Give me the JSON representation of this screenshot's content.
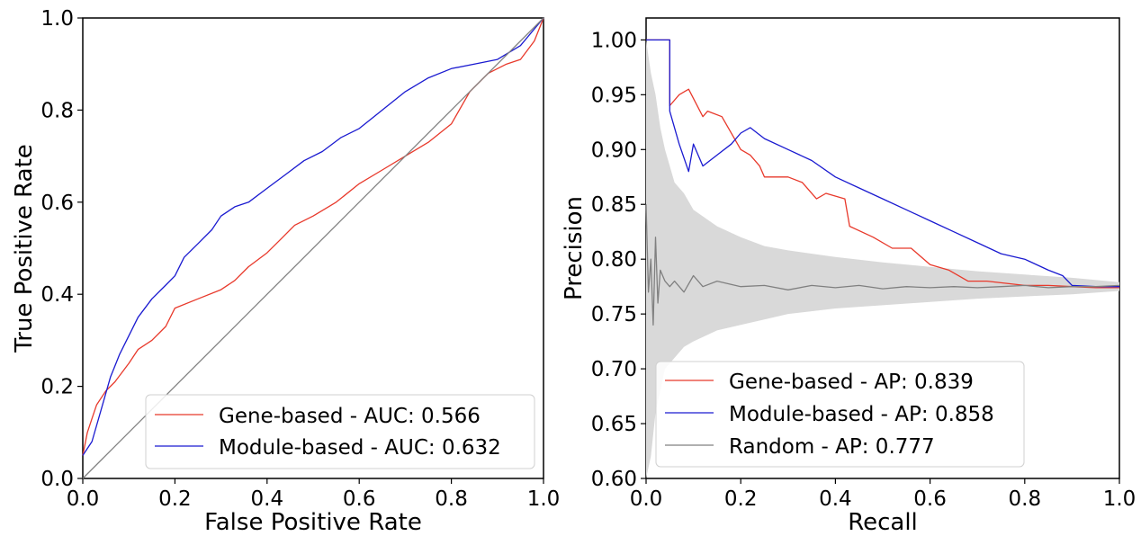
{
  "colors": {
    "gene": "#e8392b",
    "module": "#1a1ad0",
    "random": "#808080",
    "random_band": "#d9d9d9",
    "diagonal": "#808080"
  },
  "chart_data": [
    {
      "type": "line",
      "xlabel": "False Positive Rate",
      "ylabel": "True Positive Rate",
      "xlim": [
        0.0,
        1.0
      ],
      "ylim": [
        0.0,
        1.0
      ],
      "xticks": [
        "0.0",
        "0.2",
        "0.4",
        "0.6",
        "0.8",
        "1.0"
      ],
      "yticks": [
        "0.0",
        "0.2",
        "0.4",
        "0.6",
        "0.8",
        "1.0"
      ],
      "legend_position": "bottom-right",
      "series": [
        {
          "name": "Gene-based - AUC: 0.566",
          "color_key": "gene",
          "x": [
            0.0,
            0.01,
            0.02,
            0.03,
            0.05,
            0.07,
            0.1,
            0.12,
            0.15,
            0.18,
            0.2,
            0.25,
            0.3,
            0.33,
            0.36,
            0.4,
            0.43,
            0.46,
            0.5,
            0.55,
            0.6,
            0.65,
            0.7,
            0.75,
            0.8,
            0.84,
            0.88,
            0.92,
            0.95,
            0.98,
            1.0
          ],
          "y": [
            0.05,
            0.1,
            0.13,
            0.16,
            0.19,
            0.21,
            0.25,
            0.28,
            0.3,
            0.33,
            0.37,
            0.39,
            0.41,
            0.43,
            0.46,
            0.49,
            0.52,
            0.55,
            0.57,
            0.6,
            0.64,
            0.67,
            0.7,
            0.73,
            0.77,
            0.84,
            0.88,
            0.9,
            0.91,
            0.95,
            1.0
          ]
        },
        {
          "name": "Module-based - AUC: 0.632",
          "color_key": "module",
          "x": [
            0.0,
            0.02,
            0.04,
            0.06,
            0.08,
            0.1,
            0.12,
            0.15,
            0.18,
            0.2,
            0.22,
            0.25,
            0.28,
            0.3,
            0.33,
            0.36,
            0.4,
            0.44,
            0.48,
            0.52,
            0.56,
            0.6,
            0.65,
            0.7,
            0.75,
            0.8,
            0.85,
            0.9,
            0.95,
            1.0
          ],
          "y": [
            0.05,
            0.08,
            0.15,
            0.22,
            0.27,
            0.31,
            0.35,
            0.39,
            0.42,
            0.44,
            0.48,
            0.51,
            0.54,
            0.57,
            0.59,
            0.6,
            0.63,
            0.66,
            0.69,
            0.71,
            0.74,
            0.76,
            0.8,
            0.84,
            0.87,
            0.89,
            0.9,
            0.91,
            0.94,
            1.0
          ]
        },
        {
          "name": "",
          "color_key": "diagonal",
          "x": [
            0.0,
            1.0
          ],
          "y": [
            0.0,
            1.0
          ]
        }
      ]
    },
    {
      "type": "line",
      "xlabel": "Recall",
      "ylabel": "Precision",
      "xlim": [
        0.0,
        1.0
      ],
      "ylim": [
        0.6,
        1.02
      ],
      "xticks": [
        "0.0",
        "0.2",
        "0.4",
        "0.6",
        "0.8",
        "1.0"
      ],
      "yticks": [
        "0.60",
        "0.65",
        "0.70",
        "0.75",
        "0.80",
        "0.85",
        "0.90",
        "0.95",
        "1.00"
      ],
      "legend_position": "bottom-left",
      "series": [
        {
          "name": "Gene-based - AP: 0.839",
          "color_key": "gene",
          "x": [
            0.0,
            0.05,
            0.05,
            0.07,
            0.09,
            0.12,
            0.13,
            0.16,
            0.2,
            0.22,
            0.24,
            0.25,
            0.3,
            0.33,
            0.36,
            0.38,
            0.42,
            0.43,
            0.48,
            0.52,
            0.56,
            0.6,
            0.64,
            0.68,
            0.72,
            0.76,
            0.8,
            0.85,
            0.9,
            0.95,
            1.0
          ],
          "y": [
            1.0,
            1.0,
            0.94,
            0.95,
            0.955,
            0.93,
            0.935,
            0.93,
            0.9,
            0.895,
            0.885,
            0.875,
            0.875,
            0.87,
            0.855,
            0.86,
            0.855,
            0.83,
            0.82,
            0.81,
            0.81,
            0.795,
            0.79,
            0.78,
            0.78,
            0.778,
            0.776,
            0.776,
            0.775,
            0.774,
            0.774
          ]
        },
        {
          "name": "Module-based - AP: 0.858",
          "color_key": "module",
          "x": [
            0.0,
            0.05,
            0.05,
            0.07,
            0.09,
            0.1,
            0.12,
            0.15,
            0.18,
            0.2,
            0.22,
            0.25,
            0.3,
            0.35,
            0.4,
            0.45,
            0.5,
            0.55,
            0.6,
            0.65,
            0.7,
            0.75,
            0.8,
            0.85,
            0.88,
            0.9,
            0.95,
            1.0
          ],
          "y": [
            1.0,
            1.0,
            0.935,
            0.905,
            0.88,
            0.905,
            0.885,
            0.895,
            0.905,
            0.915,
            0.92,
            0.91,
            0.9,
            0.89,
            0.875,
            0.865,
            0.855,
            0.845,
            0.835,
            0.825,
            0.815,
            0.805,
            0.8,
            0.79,
            0.785,
            0.776,
            0.775,
            0.775
          ]
        },
        {
          "name": "Random - AP: 0.777",
          "color_key": "random",
          "x": [
            0.0,
            0.005,
            0.01,
            0.015,
            0.02,
            0.025,
            0.03,
            0.04,
            0.05,
            0.06,
            0.08,
            0.1,
            0.12,
            0.15,
            0.2,
            0.25,
            0.3,
            0.35,
            0.4,
            0.45,
            0.5,
            0.55,
            0.6,
            0.65,
            0.7,
            0.75,
            0.8,
            0.85,
            0.9,
            0.95,
            1.0
          ],
          "y": [
            0.85,
            0.77,
            0.8,
            0.74,
            0.82,
            0.76,
            0.79,
            0.78,
            0.775,
            0.78,
            0.77,
            0.785,
            0.775,
            0.78,
            0.775,
            0.776,
            0.772,
            0.776,
            0.774,
            0.776,
            0.773,
            0.775,
            0.774,
            0.775,
            0.774,
            0.775,
            0.776,
            0.774,
            0.775,
            0.775,
            0.776
          ]
        }
      ],
      "random_band": {
        "x": [
          0.0,
          0.01,
          0.02,
          0.03,
          0.04,
          0.06,
          0.08,
          0.1,
          0.15,
          0.2,
          0.25,
          0.3,
          0.4,
          0.5,
          0.6,
          0.7,
          0.8,
          0.9,
          1.0
        ],
        "upper": [
          1.0,
          0.97,
          0.95,
          0.92,
          0.9,
          0.87,
          0.86,
          0.845,
          0.83,
          0.82,
          0.812,
          0.808,
          0.802,
          0.797,
          0.793,
          0.789,
          0.786,
          0.783,
          0.779
        ],
        "lower": [
          0.6,
          0.62,
          0.66,
          0.68,
          0.7,
          0.71,
          0.72,
          0.725,
          0.735,
          0.74,
          0.745,
          0.75,
          0.755,
          0.758,
          0.761,
          0.764,
          0.766,
          0.768,
          0.771
        ]
      }
    }
  ]
}
